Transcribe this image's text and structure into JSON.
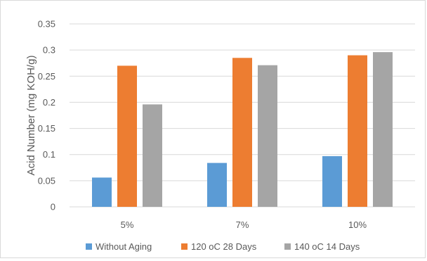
{
  "chart_data": {
    "type": "bar",
    "title": "",
    "xlabel": "",
    "ylabel": "Acid Number (mg KOH/g)",
    "categories": [
      "5%",
      "7%",
      "10%"
    ],
    "ylim": [
      0,
      0.35
    ],
    "yticks": [
      "0",
      "0.05",
      "0.1",
      "0.15",
      "0.2",
      "0.25",
      "0.3",
      "0.35"
    ],
    "grid": true,
    "legend_position": "bottom",
    "series": [
      {
        "name": "Without Aging",
        "color": "#5b9bd5",
        "values": [
          0.056,
          0.084,
          0.097
        ]
      },
      {
        "name": "120 oC 28 Days",
        "color": "#ed7d31",
        "values": [
          0.27,
          0.285,
          0.29
        ]
      },
      {
        "name": "140 oC 14 Days",
        "color": "#a5a5a5",
        "values": [
          0.196,
          0.271,
          0.296
        ]
      }
    ]
  }
}
